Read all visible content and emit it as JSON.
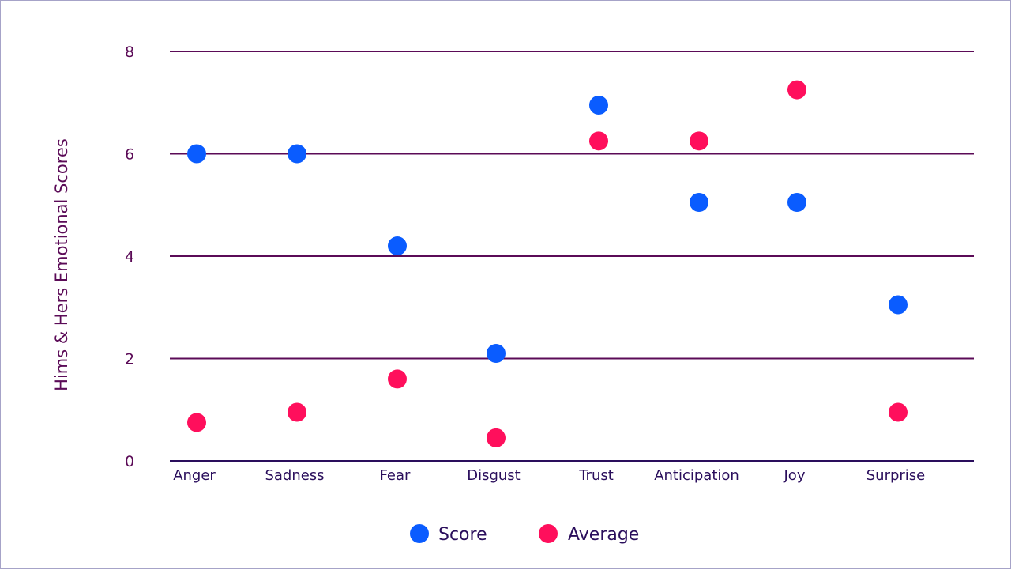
{
  "chart_data": {
    "type": "scatter",
    "title": "",
    "xlabel": "",
    "ylabel": "Hims & Hers Emotional Scores",
    "ylim": [
      0,
      8
    ],
    "yticks": [
      0,
      2,
      4,
      6,
      8
    ],
    "grid": true,
    "legend_position": "bottom-center",
    "categories": [
      "Anger",
      "Sadness",
      "Fear",
      "Disgust",
      "Trust",
      "Anticipation",
      "Joy",
      "Surprise"
    ],
    "series": [
      {
        "name": "Score",
        "color": "#0a5cff",
        "values": [
          6.0,
          6.0,
          4.2,
          2.1,
          6.95,
          5.05,
          5.05,
          3.05
        ]
      },
      {
        "name": "Average",
        "color": "#ff0f5c",
        "values": [
          0.75,
          0.95,
          1.6,
          0.45,
          6.25,
          6.25,
          7.25,
          0.95
        ]
      }
    ],
    "colors": {
      "gridline": "#5b0b57",
      "axis": "#2a0e5c",
      "tick_text": "#5b0b57",
      "category_text": "#2a0e5c"
    }
  }
}
